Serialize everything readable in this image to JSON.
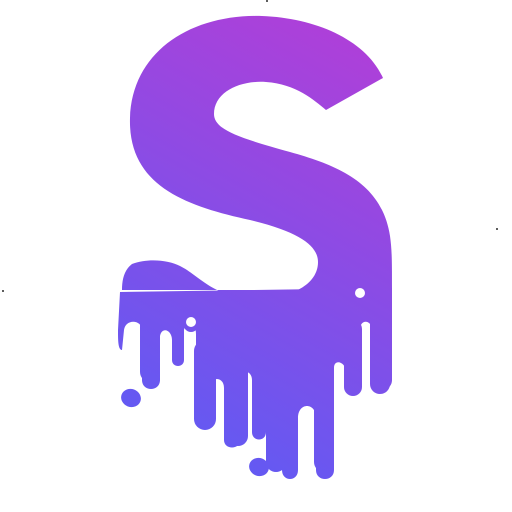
{
  "logo": {
    "icon": "dripping-letter-s-logo",
    "gradient_start": "#b03fd8",
    "gradient_end": "#5b5cf5",
    "background": "#ffffff"
  }
}
